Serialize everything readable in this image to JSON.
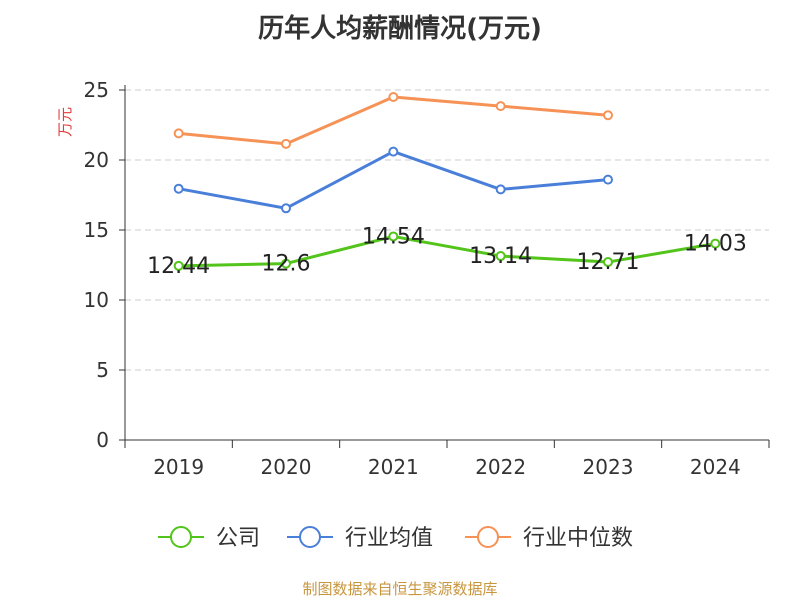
{
  "chart_data": {
    "type": "line",
    "title": "历年人均薪酬情况(万元)",
    "ylabel": "万元",
    "xlabel": "",
    "categories": [
      "2019",
      "2020",
      "2021",
      "2022",
      "2023",
      "2024"
    ],
    "ylim": [
      0,
      25
    ],
    "yticks": [
      0,
      5,
      10,
      15,
      20,
      25
    ],
    "grid": true,
    "legend_position": "bottom",
    "series": [
      {
        "name": "公司",
        "color": "#52c41a",
        "values": [
          12.44,
          12.6,
          14.54,
          13.14,
          12.71,
          14.03
        ],
        "labels": [
          "12.44",
          "12.6",
          "14.54",
          "13.14",
          "12.71",
          "14.03"
        ]
      },
      {
        "name": "行业均值",
        "color": "#4a7fd9",
        "values": [
          17.95,
          16.55,
          20.6,
          17.9,
          18.6,
          null
        ]
      },
      {
        "name": "行业中位数",
        "color": "#f79256",
        "values": [
          21.9,
          21.15,
          24.5,
          23.85,
          23.2,
          null
        ]
      }
    ]
  },
  "source_note": "制图数据来自恒生聚源数据库"
}
